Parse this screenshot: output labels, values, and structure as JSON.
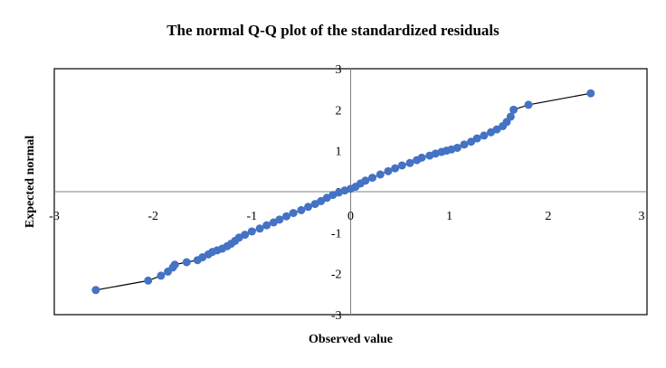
{
  "chart_data": {
    "type": "scatter",
    "title": "The normal Q-Q plot of the standardized residuals",
    "xlabel": "Observed value",
    "ylabel": "Expected normal",
    "xlim": [
      -3,
      3
    ],
    "ylim": [
      -3,
      3
    ],
    "xticks": [
      "-3",
      "-2",
      "-1",
      "0",
      "1",
      "2",
      "3"
    ],
    "yticks": [
      "-3",
      "-2",
      "-1",
      "0",
      "1",
      "2",
      "3"
    ],
    "grid": false,
    "legend": "none",
    "marker_color": "#4472C4",
    "line_color": "#000000",
    "x": [
      -2.58,
      -2.05,
      -1.92,
      -1.85,
      -1.8,
      -1.78,
      -1.66,
      -1.55,
      -1.5,
      -1.44,
      -1.4,
      -1.35,
      -1.3,
      -1.25,
      -1.21,
      -1.17,
      -1.13,
      -1.07,
      -1.0,
      -0.92,
      -0.85,
      -0.78,
      -0.72,
      -0.65,
      -0.58,
      -0.5,
      -0.43,
      -0.36,
      -0.3,
      -0.24,
      -0.18,
      -0.12,
      -0.06,
      0.0,
      0.05,
      0.1,
      0.15,
      0.22,
      0.3,
      0.38,
      0.45,
      0.52,
      0.6,
      0.67,
      0.72,
      0.8,
      0.86,
      0.92,
      0.97,
      1.02,
      1.08,
      1.15,
      1.22,
      1.28,
      1.35,
      1.42,
      1.48,
      1.54,
      1.58,
      1.62,
      1.65,
      1.8,
      2.43
    ],
    "y": [
      -2.4,
      -2.17,
      -2.05,
      -1.95,
      -1.85,
      -1.78,
      -1.72,
      -1.67,
      -1.6,
      -1.53,
      -1.47,
      -1.43,
      -1.39,
      -1.33,
      -1.27,
      -1.2,
      -1.12,
      -1.05,
      -0.97,
      -0.9,
      -0.82,
      -0.75,
      -0.68,
      -0.6,
      -0.52,
      -0.45,
      -0.37,
      -0.3,
      -0.23,
      -0.15,
      -0.08,
      -0.02,
      0.03,
      0.07,
      0.12,
      0.2,
      0.27,
      0.34,
      0.42,
      0.5,
      0.57,
      0.64,
      0.7,
      0.77,
      0.83,
      0.88,
      0.93,
      0.97,
      1.0,
      1.03,
      1.07,
      1.15,
      1.22,
      1.3,
      1.37,
      1.45,
      1.52,
      1.6,
      1.7,
      1.83,
      2.0,
      2.12,
      2.4
    ]
  }
}
